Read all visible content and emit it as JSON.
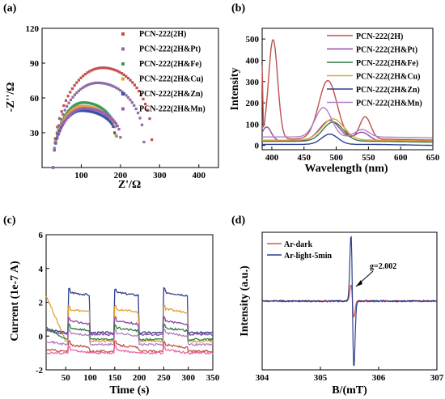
{
  "chart_data": [
    {
      "panel": "(a)",
      "type": "scatter",
      "xlabel": "Z'/Ω",
      "ylabel": "-Z''/Ω",
      "xlim": [
        0,
        450
      ],
      "ylim": [
        0,
        120
      ],
      "xticks": [
        100,
        200,
        300,
        400
      ],
      "yticks": [
        30,
        60,
        90,
        120
      ],
      "legend_position": "top-right",
      "series": [
        {
          "name": "PCN-222(2H)",
          "color": "#c0504d",
          "arc": {
            "x0": 28,
            "x1": 280,
            "height": 86,
            "peak_x": 155,
            "tail_y": 24
          }
        },
        {
          "name": "PCN-222(2H&Pt)",
          "color": "#8e6aa8",
          "arc": {
            "x0": 28,
            "x1": 260,
            "height": 73,
            "peak_x": 142,
            "tail_y": 22
          }
        },
        {
          "name": "PCN-222(2H&Fe)",
          "color": "#3b9b5b",
          "arc": {
            "x0": 28,
            "x1": 190,
            "height": 56,
            "peak_x": 105,
            "tail_y": 27
          }
        },
        {
          "name": "PCN-222(2H&Cu)",
          "color": "#e2a13a",
          "arc": {
            "x0": 28,
            "x1": 188,
            "height": 53,
            "peak_x": 103,
            "tail_y": 28
          }
        },
        {
          "name": "PCN-222(2H&Zn)",
          "color": "#3a4fa8",
          "arc": {
            "x0": 28,
            "x1": 185,
            "height": 49,
            "peak_x": 100,
            "tail_y": 30
          }
        },
        {
          "name": "PCN-222(2H&Mn)",
          "color": "#9a5fb5",
          "arc": {
            "x0": 28,
            "x1": 200,
            "height": 51,
            "peak_x": 107,
            "tail_y": 26
          }
        }
      ]
    },
    {
      "panel": "(b)",
      "type": "line",
      "xlabel": "Wavelength (nm)",
      "ylabel": "Intensity",
      "xlim": [
        385,
        650
      ],
      "ylim": [
        -20,
        550
      ],
      "xticks": [
        400,
        450,
        500,
        550,
        600,
        650
      ],
      "yticks": [
        0,
        100,
        200,
        300,
        400,
        500
      ],
      "legend_position": "top-right",
      "series": [
        {
          "name": "PCN-222(2H)",
          "color": "#c0504d",
          "peaks": [
            [
              385,
              320,
              0
            ],
            [
              402,
              470,
              10
            ],
            [
              487,
              275,
              20
            ],
            [
              545,
              105,
              12
            ]
          ],
          "baseline": 30
        },
        {
          "name": "PCN-222(2H&Pt)",
          "color": "#8e4aa0",
          "peaks": [
            [
              392,
              65,
              10
            ],
            [
              490,
              95,
              22
            ],
            [
              540,
              40,
              15
            ]
          ],
          "baseline": 22
        },
        {
          "name": "PCN-222(2H&Fe)",
          "color": "#2e7d44",
          "peaks": [
            [
              495,
              90,
              22
            ]
          ],
          "baseline": 20
        },
        {
          "name": "PCN-222(2H&Cu)",
          "color": "#e2a13a",
          "peaks": [
            [
              495,
              100,
              24
            ]
          ],
          "baseline": 25
        },
        {
          "name": "PCN-222(2H&Zn)",
          "color": "#2f3f8f",
          "peaks": [
            [
              490,
              48,
              18
            ]
          ],
          "baseline": 5
        },
        {
          "name": "PCN-222(2H&Mn)",
          "color": "#b07fc4",
          "peaks": [
            [
              480,
              138,
              18
            ],
            [
              540,
              35,
              15
            ]
          ],
          "baseline": 40
        }
      ]
    },
    {
      "panel": "(c)",
      "type": "line",
      "xlabel": "Time (s)",
      "ylabel": "Current (1e-7 A)",
      "xlim": [
        10,
        350
      ],
      "ylim": [
        -2,
        6
      ],
      "xticks": [
        50,
        100,
        150,
        200,
        250,
        300,
        350
      ],
      "yticks": [
        -2,
        0,
        2,
        4,
        6
      ],
      "light_on_intervals": [
        [
          55,
          100
        ],
        [
          150,
          200
        ],
        [
          250,
          300
        ]
      ],
      "series": [
        {
          "color": "#2f3f8f",
          "dark": 0.2,
          "light": 2.6,
          "start": 0.4
        },
        {
          "color": "#e2a13a",
          "dark": -0.3,
          "light": 1.6,
          "start": 2.4
        },
        {
          "color": "#8e4aa0",
          "dark": 0.1,
          "light": 0.9,
          "start": 0.3
        },
        {
          "color": "#2e7d44",
          "dark": -0.2,
          "light": 0.5,
          "start": 0.5
        },
        {
          "color": "#b07fc4",
          "dark": -0.5,
          "light": 0.2,
          "start": -0.3
        },
        {
          "color": "#c0504d",
          "dark": -0.9,
          "light": -0.5,
          "start": -0.8
        },
        {
          "color": "#e86aa0",
          "dark": -1.0,
          "light": -0.8,
          "start": -1.0
        }
      ]
    },
    {
      "panel": "(d)",
      "type": "line",
      "xlabel": "B/(mT)",
      "ylabel": "Intensity (a.u.)",
      "xlim": [
        304,
        307
      ],
      "xticks": [
        304,
        305,
        306,
        307
      ],
      "legend_position": "top-left",
      "annotation": "g=2.002",
      "series": [
        {
          "name": "Ar-dark",
          "color": "#e05050",
          "center": 305.55,
          "amplitude": 0.25
        },
        {
          "name": "Ar-light-5min",
          "color": "#2f3f8f",
          "center": 305.55,
          "amplitude": 1.0
        }
      ]
    }
  ]
}
